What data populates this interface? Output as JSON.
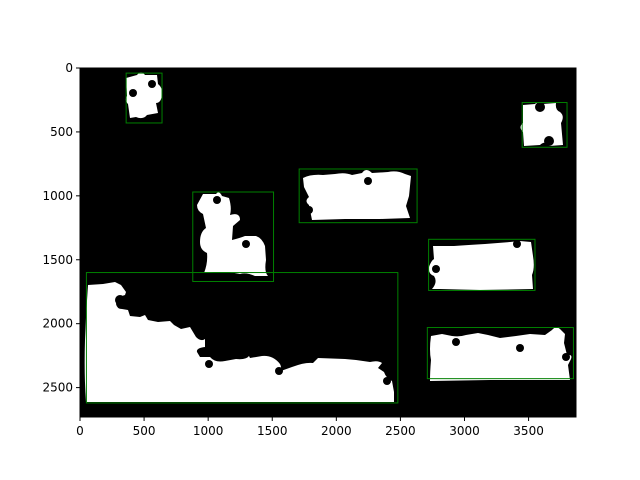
{
  "chart_data": {
    "type": "image",
    "title": "",
    "xlabel": "",
    "ylabel": "",
    "image_size": {
      "width": 3870,
      "height": 2730
    },
    "xlim": [
      0,
      3870
    ],
    "ylim": [
      2730,
      0
    ],
    "x_ticks": [
      0,
      500,
      1000,
      1500,
      2000,
      2500,
      3000,
      3500
    ],
    "y_ticks": [
      0,
      500,
      1000,
      1500,
      2000,
      2500
    ],
    "background_color": "#000000",
    "piece_color": "#ffffff",
    "box_color": "#008000",
    "bounding_boxes": [
      {
        "x0": 360,
        "y0": 40,
        "x1": 640,
        "y1": 430
      },
      {
        "x0": 3450,
        "y0": 270,
        "x1": 3800,
        "y1": 620
      },
      {
        "x0": 1710,
        "y0": 790,
        "x1": 2630,
        "y1": 1210
      },
      {
        "x0": 880,
        "y0": 970,
        "x1": 1510,
        "y1": 1670
      },
      {
        "x0": 2720,
        "y0": 1340,
        "x1": 3550,
        "y1": 1740
      },
      {
        "x0": 50,
        "y0": 1600,
        "x1": 2480,
        "y1": 2620
      },
      {
        "x0": 2710,
        "y0": 2030,
        "x1": 3850,
        "y1": 2430
      }
    ]
  }
}
